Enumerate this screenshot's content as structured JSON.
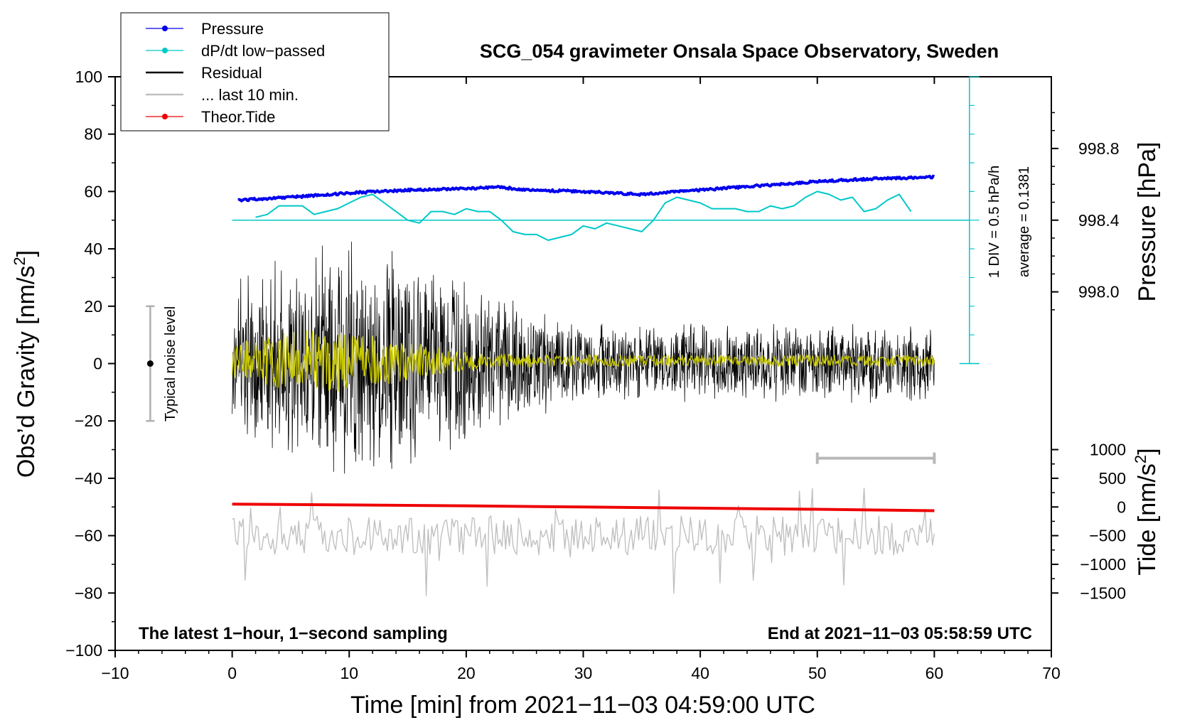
{
  "chart_data": {
    "type": "line",
    "title": "SCG_054 gravimeter Onsala Space Observatory, Sweden",
    "xlabel": "Time [min] from 2021−11−03 04:59:00 UTC",
    "ylabel_main": "Obs’d Gravity [nm/s",
    "ylabel_pressure": "Pressure [hPa]",
    "ylabel_tide": "Tide [nm/s",
    "superscript": "2",
    "label_close": "]",
    "xlim": [
      -10,
      70
    ],
    "ylim": [
      -100,
      100
    ],
    "x_ticks": [
      "−10",
      "0",
      "10",
      "20",
      "30",
      "40",
      "50",
      "60",
      "70"
    ],
    "x_tick_values": [
      -10,
      0,
      10,
      20,
      30,
      40,
      50,
      60,
      70
    ],
    "y_ticks": [
      "−100",
      "−80",
      "−60",
      "−40",
      "−20",
      "0",
      "20",
      "40",
      "60",
      "80",
      "100"
    ],
    "y_tick_values": [
      -100,
      -80,
      -60,
      -40,
      -20,
      0,
      20,
      40,
      60,
      80,
      100
    ],
    "pressure_ticks": [
      "998.0",
      "998.4",
      "998.8"
    ],
    "pressure_tick_values": [
      998.0,
      998.4,
      998.8
    ],
    "pressure_axis": {
      "gravity_at_998_4": 50,
      "gravity_per_hpa": 62.5
    },
    "tide_ticks": [
      "−1500",
      "−1000",
      "−500",
      "0",
      "500",
      "1000"
    ],
    "tide_tick_values": [
      -1500,
      -1000,
      -500,
      0,
      500,
      1000
    ],
    "tide_axis": {
      "gravity_at_zero": -50,
      "gravity_per_nms2": 0.02
    },
    "legend": [
      {
        "name": "Pressure",
        "color": "#0000ee",
        "marker": true
      },
      {
        "name": "dP/dt low−passed",
        "color": "#00c8c8",
        "marker": true
      },
      {
        "name": "Residual",
        "color": "#000000",
        "marker": false
      },
      {
        "name": "... last 10 min.",
        "color": "#c0c0c0",
        "marker": false
      },
      {
        "name": "Theor.Tide",
        "color": "#ee0000",
        "marker": true
      }
    ],
    "series": [
      {
        "name": "Pressure",
        "color": "#0000ee",
        "x": [
          0.5,
          5,
          10,
          15,
          20,
          23,
          25,
          30,
          35,
          40,
          45,
          50,
          55,
          60
        ],
        "y": [
          57,
          58,
          59.5,
          60.5,
          61,
          61.5,
          60.5,
          60,
          59,
          60.5,
          62,
          63.5,
          64.5,
          65
        ]
      },
      {
        "name": "dP/dt low−passed",
        "color": "#00c8c8",
        "x": [
          2,
          3,
          4,
          5,
          6,
          7,
          8,
          9,
          10,
          11,
          12,
          13,
          14,
          15,
          16,
          17,
          18,
          19,
          20,
          21,
          22,
          23,
          24,
          25,
          26,
          27,
          28,
          29,
          30,
          31,
          32,
          33,
          34,
          35,
          36,
          37,
          38,
          39,
          40,
          41,
          42,
          43,
          44,
          45,
          46,
          47,
          48,
          49,
          50,
          51,
          52,
          53,
          54,
          55,
          56,
          57,
          58
        ],
        "y": [
          51,
          52,
          55,
          55,
          55,
          52,
          53,
          54,
          56,
          58,
          59,
          56,
          53,
          50,
          49,
          53,
          53,
          52,
          54,
          53,
          53,
          50,
          46,
          45,
          45,
          43,
          44,
          45,
          48,
          47,
          49,
          48,
          47,
          46,
          50,
          56,
          58,
          57,
          56,
          54,
          54,
          54,
          53,
          53,
          55,
          54,
          55,
          58,
          60,
          59,
          57,
          58,
          53,
          54,
          57,
          59,
          53
        ]
      },
      {
        "name": "Residual",
        "color": "#000000",
        "x": [
          0,
          60
        ],
        "y": [
          0,
          0
        ],
        "note": "1 Hz noise, amplitude decreasing from about ±40 near 10 min to about ±10 near 60 min"
      },
      {
        "name": "Residual (smoothed)",
        "color": "#c8c800",
        "x": [
          0,
          60
        ],
        "y": [
          0,
          0
        ]
      },
      {
        "name": "... last 10 min.",
        "color": "#c0c0c0",
        "x": [
          0,
          60
        ],
        "y": [
          -60,
          -60
        ],
        "note": "10-minute residual window offset to −60"
      },
      {
        "name": "Theor.Tide",
        "color": "#ee0000",
        "x": [
          0,
          10,
          20,
          30,
          40,
          50,
          60
        ],
        "y": [
          -49,
          -49.3,
          -49.6,
          -50.0,
          -50.4,
          -50.8,
          -51.3
        ]
      }
    ],
    "annotations": {
      "noise_label": "Typical noise level",
      "noise_range": [
        -20,
        20
      ],
      "noise_x": -7,
      "scale_div": "1 DIV = 0.5 hPa/h",
      "average": "average = 0.1381",
      "footer_left": "The latest 1−hour, 1−second sampling",
      "footer_right": "End at 2021−11−03 05:58:59 UTC",
      "window_bar": [
        50,
        60
      ],
      "window_bar_y": -33
    }
  }
}
